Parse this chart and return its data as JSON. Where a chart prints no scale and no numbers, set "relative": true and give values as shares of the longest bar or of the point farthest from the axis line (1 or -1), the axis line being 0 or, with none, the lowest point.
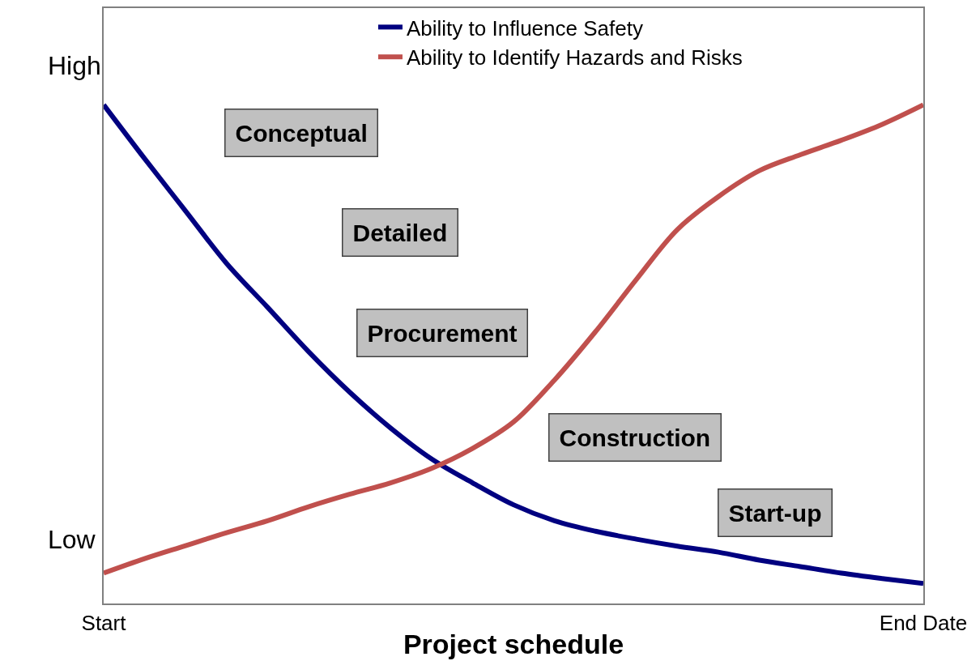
{
  "chart_data": {
    "type": "line",
    "relative": true,
    "xlabel": "Project schedule",
    "categories": [
      "Start",
      null,
      null,
      null,
      null,
      null,
      null,
      null,
      null,
      null,
      null,
      null,
      null,
      null,
      null,
      null,
      null,
      null,
      null,
      null,
      "End Date"
    ],
    "series": [
      {
        "name": "Ability to Influence Safety",
        "color": "#000080",
        "values": [
          1.0,
          0.892,
          0.787,
          0.682,
          0.594,
          0.505,
          0.424,
          0.352,
          0.29,
          0.242,
          0.198,
          0.166,
          0.145,
          0.129,
          0.115,
          0.103,
          0.087,
          0.074,
          0.061,
          0.05,
          0.04
        ]
      },
      {
        "name": "Ability to Identify Hazards and Risks",
        "color": "#c0504d",
        "values": [
          0.061,
          0.09,
          0.116,
          0.142,
          0.166,
          0.194,
          0.219,
          0.242,
          0.271,
          0.311,
          0.364,
          0.448,
          0.545,
          0.65,
          0.75,
          0.816,
          0.868,
          0.9,
          0.929,
          0.961,
          1.0
        ]
      }
    ],
    "annotations": [
      "High",
      "Low",
      "Conceptual",
      "Detailed",
      "Procurement",
      "Construction",
      "Start-up"
    ],
    "legend": "top right",
    "marker": "none",
    "line_style": "solid"
  }
}
